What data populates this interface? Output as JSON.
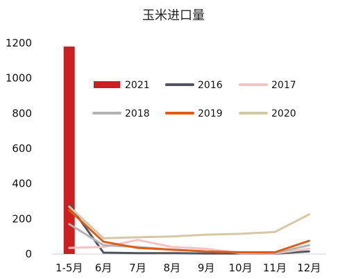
{
  "chart_data": {
    "type": "bar+line",
    "title": "玉米进口量",
    "xlabel": "",
    "ylabel": "",
    "ylim": [
      0,
      1200
    ],
    "yticks": [
      0,
      200,
      400,
      600,
      800,
      1000,
      1200
    ],
    "categories": [
      "1-5月",
      "6月",
      "7月",
      "8月",
      "9月",
      "10月",
      "11月",
      "12月"
    ],
    "grid": false,
    "legend_position": "upper-right",
    "bar_series": [
      {
        "name": "2021",
        "color": "#cc1f1f",
        "values": [
          1180,
          null,
          null,
          null,
          null,
          null,
          null,
          null
        ]
      }
    ],
    "line_series": [
      {
        "name": "2016",
        "color": "#4d5560",
        "values": [
          280,
          8,
          5,
          5,
          3,
          3,
          2,
          15
        ]
      },
      {
        "name": "2017",
        "color": "#f4c4c4",
        "values": [
          35,
          40,
          80,
          40,
          30,
          5,
          3,
          30
        ]
      },
      {
        "name": "2018",
        "color": "#b3b3b3",
        "values": [
          170,
          50,
          40,
          25,
          15,
          10,
          5,
          50
        ]
      },
      {
        "name": "2019",
        "color": "#e05a18",
        "values": [
          250,
          70,
          35,
          25,
          15,
          10,
          10,
          75
        ]
      },
      {
        "name": "2020",
        "color": "#d6c8a6",
        "values": [
          270,
          90,
          95,
          100,
          110,
          115,
          125,
          225
        ]
      }
    ],
    "legend_order": [
      "2021",
      "2016",
      "2017",
      "2018",
      "2019",
      "2020"
    ]
  }
}
